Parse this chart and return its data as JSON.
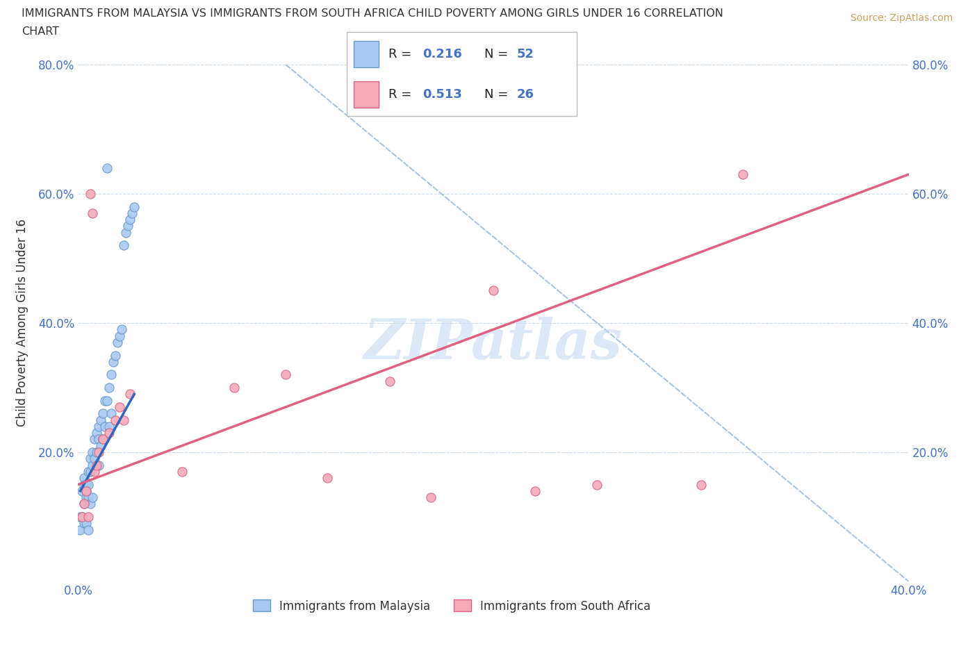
{
  "title_line1": "IMMIGRANTS FROM MALAYSIA VS IMMIGRANTS FROM SOUTH AFRICA CHILD POVERTY AMONG GIRLS UNDER 16 CORRELATION",
  "title_line2": "CHART",
  "source": "Source: ZipAtlas.com",
  "ylabel": "Child Poverty Among Girls Under 16",
  "xlim": [
    0.0,
    0.4
  ],
  "ylim": [
    0.0,
    0.8
  ],
  "xticks": [
    0.0,
    0.05,
    0.1,
    0.15,
    0.2,
    0.25,
    0.3,
    0.35,
    0.4
  ],
  "xticklabels": [
    "0.0%",
    "",
    "",
    "",
    "",
    "",
    "",
    "",
    "40.0%"
  ],
  "yticks": [
    0.0,
    0.2,
    0.4,
    0.6,
    0.8
  ],
  "ylabels_left": [
    "",
    "20.0%",
    "40.0%",
    "60.0%",
    "80.0%"
  ],
  "ylabels_right": [
    "",
    "20.0%",
    "40.0%",
    "60.0%",
    "80.0%"
  ],
  "malaysia_color": "#aac9f0",
  "malaysia_edge": "#6699cc",
  "south_africa_color": "#f5aaba",
  "south_africa_edge": "#d96080",
  "malaysia_trend_color": "#3366bb",
  "south_africa_trend_color": "#e06080",
  "ref_line_color": "#99bbdd",
  "grid_color": "#ccddee",
  "watermark_color": "#c5daf0",
  "legend_label_malaysia": "Immigrants from Malaysia",
  "legend_label_south_africa": "Immigrants from South Africa",
  "watermark": "ZIPatlas",
  "malaysia_x": [
    0.001,
    0.001,
    0.002,
    0.002,
    0.003,
    0.003,
    0.003,
    0.003,
    0.004,
    0.004,
    0.004,
    0.004,
    0.005,
    0.005,
    0.005,
    0.005,
    0.006,
    0.006,
    0.006,
    0.007,
    0.007,
    0.007,
    0.008,
    0.008,
    0.009,
    0.009,
    0.01,
    0.01,
    0.01,
    0.011,
    0.011,
    0.012,
    0.012,
    0.013,
    0.013,
    0.014,
    0.014,
    0.015,
    0.015,
    0.016,
    0.016,
    0.017,
    0.018,
    0.019,
    0.02,
    0.021,
    0.022,
    0.023,
    0.024,
    0.025,
    0.026,
    0.027
  ],
  "malaysia_y": [
    0.1,
    0.08,
    0.14,
    0.1,
    0.16,
    0.15,
    0.12,
    0.09,
    0.15,
    0.14,
    0.13,
    0.09,
    0.17,
    0.15,
    0.13,
    0.08,
    0.19,
    0.17,
    0.12,
    0.2,
    0.18,
    0.13,
    0.22,
    0.19,
    0.23,
    0.2,
    0.24,
    0.22,
    0.18,
    0.25,
    0.21,
    0.26,
    0.22,
    0.28,
    0.24,
    0.64,
    0.28,
    0.3,
    0.24,
    0.32,
    0.26,
    0.34,
    0.35,
    0.37,
    0.38,
    0.39,
    0.52,
    0.54,
    0.55,
    0.56,
    0.57,
    0.58
  ],
  "south_africa_x": [
    0.002,
    0.003,
    0.004,
    0.005,
    0.006,
    0.007,
    0.008,
    0.009,
    0.01,
    0.012,
    0.015,
    0.018,
    0.02,
    0.022,
    0.025,
    0.05,
    0.075,
    0.1,
    0.12,
    0.15,
    0.17,
    0.2,
    0.22,
    0.25,
    0.3,
    0.32
  ],
  "south_africa_y": [
    0.1,
    0.12,
    0.14,
    0.1,
    0.6,
    0.57,
    0.17,
    0.18,
    0.2,
    0.22,
    0.23,
    0.25,
    0.27,
    0.25,
    0.29,
    0.17,
    0.3,
    0.32,
    0.16,
    0.31,
    0.13,
    0.45,
    0.14,
    0.15,
    0.15,
    0.63
  ],
  "malaysia_trend_x": [
    0.001,
    0.027
  ],
  "malaysia_trend_y": [
    0.14,
    0.29
  ],
  "south_africa_trend_x": [
    0.0,
    0.4
  ],
  "south_africa_trend_y": [
    0.15,
    0.63
  ],
  "ref_line_x": [
    0.1,
    0.4
  ],
  "ref_line_y": [
    0.8,
    0.0
  ]
}
